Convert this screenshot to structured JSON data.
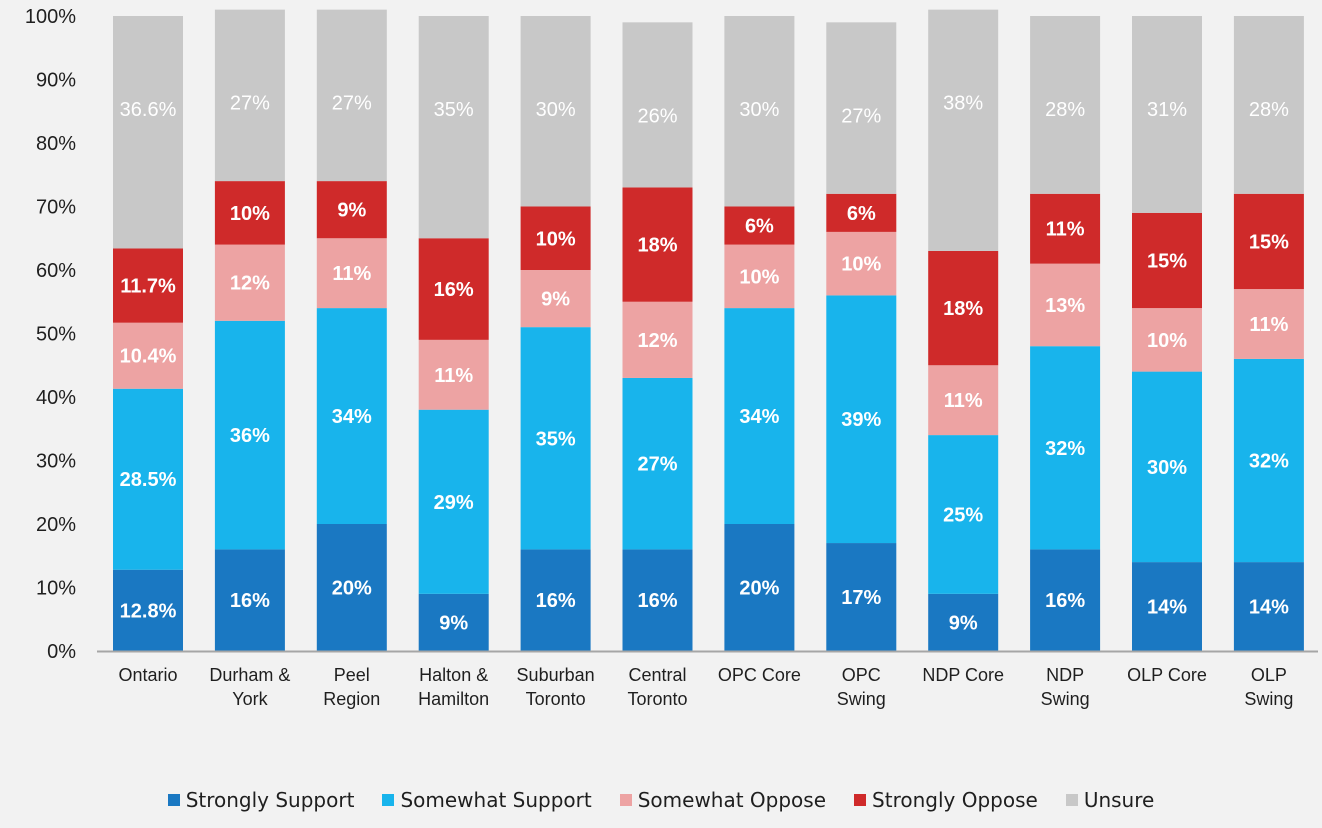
{
  "chart_data": {
    "type": "bar",
    "stacked": true,
    "percent_scale": true,
    "categories": [
      [
        "Ontario"
      ],
      [
        "Durham &",
        "York"
      ],
      [
        "Peel",
        "Region"
      ],
      [
        "Halton &",
        "Hamilton"
      ],
      [
        "Suburban",
        "Toronto"
      ],
      [
        "Central",
        "Toronto"
      ],
      [
        "OPC Core"
      ],
      [
        "OPC",
        "Swing"
      ],
      [
        "NDP Core"
      ],
      [
        "NDP",
        "Swing"
      ],
      [
        "OLP Core"
      ],
      [
        "OLP",
        "Swing"
      ]
    ],
    "series": [
      {
        "name": "Strongly Support",
        "color": "#1a78c2",
        "label_color": "#ffffff",
        "label_weight": "bold",
        "values": [
          12.8,
          16,
          20,
          9,
          16,
          16,
          20,
          17,
          9,
          16,
          14,
          14
        ],
        "labels": [
          "12.8%",
          "16%",
          "20%",
          "9%",
          "16%",
          "16%",
          "20%",
          "17%",
          "9%",
          "16%",
          "14%",
          "14%"
        ]
      },
      {
        "name": "Somewhat Support",
        "color": "#18b4ec",
        "label_color": "#ffffff",
        "label_weight": "bold",
        "values": [
          28.5,
          36,
          34,
          29,
          35,
          27,
          34,
          39,
          25,
          32,
          30,
          32
        ],
        "labels": [
          "28.5%",
          "36%",
          "34%",
          "29%",
          "35%",
          "27%",
          "34%",
          "39%",
          "25%",
          "32%",
          "30%",
          "32%"
        ]
      },
      {
        "name": "Somewhat Oppose",
        "color": "#eda3a3",
        "label_color": "#ffffff",
        "label_weight": "bold",
        "values": [
          10.4,
          12,
          11,
          11,
          9,
          12,
          10,
          10,
          11,
          13,
          10,
          11
        ],
        "labels": [
          "10.4%",
          "12%",
          "11%",
          "11%",
          "9%",
          "12%",
          "10%",
          "10%",
          "11%",
          "13%",
          "10%",
          "11%"
        ]
      },
      {
        "name": "Strongly Oppose",
        "color": "#cf2a2a",
        "label_color": "#ffffff",
        "label_weight": "bold",
        "values": [
          11.7,
          10,
          9,
          16,
          10,
          18,
          6,
          6,
          18,
          11,
          15,
          15
        ],
        "labels": [
          "11.7%",
          "10%",
          "9%",
          "16%",
          "10%",
          "18%",
          "6%",
          "6%",
          "18%",
          "11%",
          "15%",
          "15%"
        ]
      },
      {
        "name": "Unsure",
        "color": "#c8c8c8",
        "label_color": "#ffffff",
        "label_weight": "normal",
        "values": [
          36.6,
          27,
          27,
          35,
          30,
          26,
          30,
          27,
          38,
          28,
          31,
          28
        ],
        "labels": [
          "36.6%",
          "27%",
          "27%",
          "35%",
          "30%",
          "26%",
          "30%",
          "27%",
          "38%",
          "28%",
          "31%",
          "28%"
        ]
      }
    ],
    "y_ticks": [
      "0%",
      "10%",
      "20%",
      "30%",
      "40%",
      "50%",
      "60%",
      "70%",
      "80%",
      "90%",
      "100%"
    ],
    "ylim": [
      0,
      100
    ],
    "title": "",
    "xlabel": "",
    "ylabel": "",
    "grid": false,
    "legend_position": "bottom"
  }
}
